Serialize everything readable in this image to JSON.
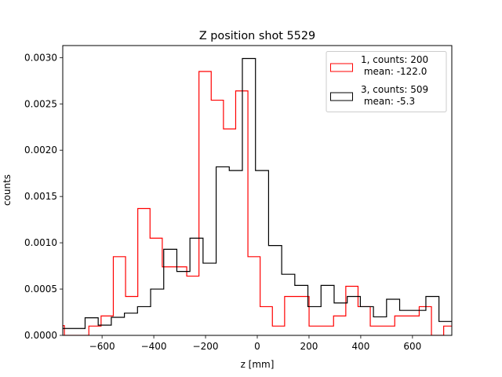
{
  "chart_data": {
    "type": "histogram-step",
    "title": "Z position shot 5529",
    "xlabel": "z [mm]",
    "ylabel": "counts",
    "xlim": [
      -752,
      752
    ],
    "ylim": [
      0,
      0.00313
    ],
    "xticks": [
      -600,
      -400,
      -200,
      0,
      200,
      400,
      600
    ],
    "xtick_labels": [
      "−600",
      "−400",
      "−200",
      "0",
      "200",
      "400",
      "600"
    ],
    "yticks": [
      0,
      0.0005,
      0.001,
      0.0015,
      0.002,
      0.0025,
      0.003
    ],
    "ytick_labels": [
      "0.0000",
      "0.0005",
      "0.0010",
      "0.0015",
      "0.0020",
      "0.0025",
      "0.0030"
    ],
    "grid": false,
    "legend_position": "upper-right",
    "series": [
      {
        "name": "1",
        "legend_line1": "1, counts: 200",
        "legend_line2": " mean: -122.0",
        "color": "#ff0000",
        "bin_start": -793,
        "bin_width": 47.3,
        "values": [
          0.000105,
          0,
          0,
          0.0001,
          0.00021,
          0.00085,
          0.00042,
          0.00137,
          0.00105,
          0.00074,
          0.00074,
          0.00064,
          0.00285,
          0.00254,
          0.00223,
          0.00264,
          0.00085,
          0.00031,
          0.0001,
          0.00042,
          0.00042,
          0.0001,
          0.0001,
          0.00021,
          0.00053,
          0.00031,
          0.0001,
          0.0001,
          0.00021,
          0.00021,
          0.00031,
          0,
          0.0001
        ]
      },
      {
        "name": "3",
        "legend_line1": "3, counts: 509",
        "legend_line2": " mean: -5.3",
        "color": "#000000",
        "bin_start": -767,
        "bin_width": 50.67,
        "values": [
          7.4e-05,
          7.4e-05,
          0.00019,
          0.00011,
          0.000195,
          0.00024,
          0.00031,
          0.0005,
          0.00093,
          0.00069,
          0.00105,
          0.00078,
          0.00182,
          0.00178,
          0.00299,
          0.00178,
          0.00097,
          0.00066,
          0.00054,
          0.00031,
          0.00054,
          0.00035,
          0.00042,
          0.00031,
          0.0002,
          0.00039,
          0.00027,
          0.00027,
          0.00042,
          0.00015
        ]
      }
    ]
  }
}
